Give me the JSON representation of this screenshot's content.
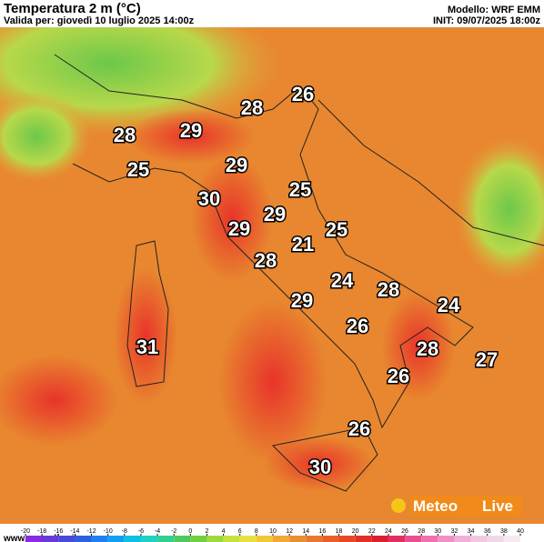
{
  "header": {
    "title": "Temperatura 2 m (°C)",
    "valid": "Valida per: giovedì 10 luglio 2025 14:00z",
    "model": "Modello: WRF EMM",
    "init": "INIT: 09/07/2025 18:00z"
  },
  "map": {
    "labels": [
      28,
      26,
      28,
      29,
      25,
      29,
      30,
      25,
      29,
      29,
      21,
      25,
      28,
      24,
      28,
      24,
      29,
      26,
      31,
      28,
      27,
      26,
      26,
      30
    ]
  },
  "colorbar": {
    "ticks": [
      -20,
      -18,
      -16,
      -14,
      -12,
      -10,
      -8,
      -6,
      -4,
      -2,
      0,
      2,
      4,
      6,
      8,
      10,
      12,
      14,
      16,
      18,
      20,
      22,
      24,
      26,
      28,
      30,
      32,
      34,
      36,
      38,
      40
    ]
  },
  "footer": {
    "site": "www.meteolive.it",
    "logo_a": "Meteo",
    "logo_b": "Live"
  }
}
